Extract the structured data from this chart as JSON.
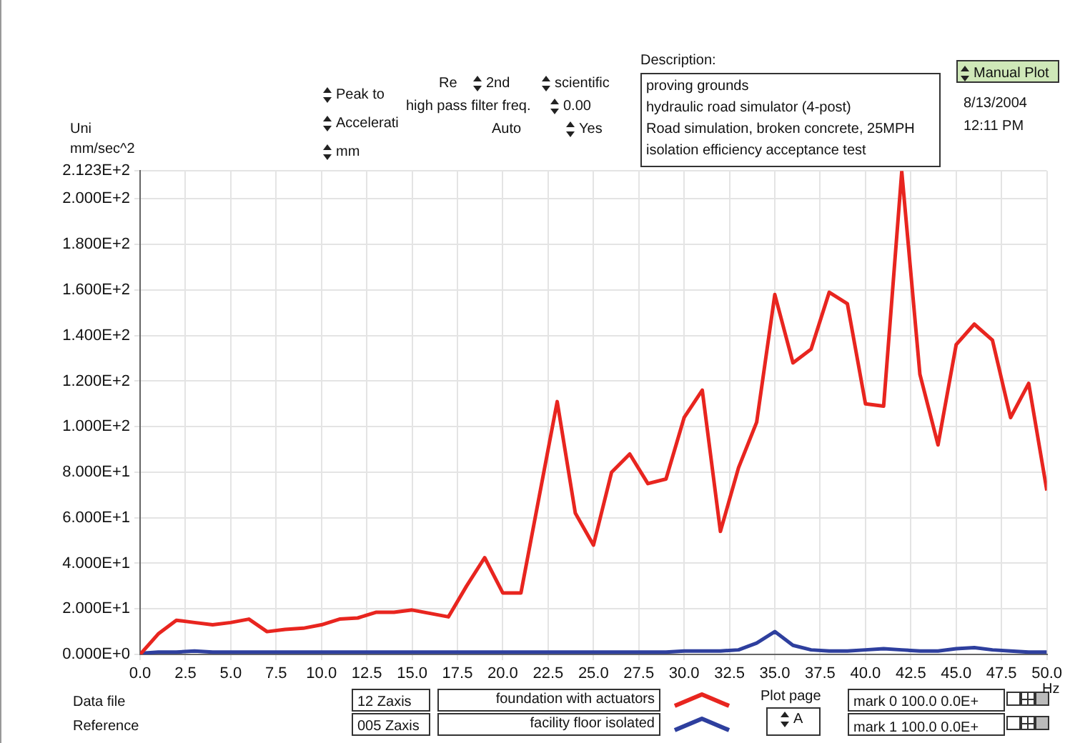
{
  "chart_data": {
    "type": "line",
    "xlabel": "Hz",
    "ylabel": "mm/sec^2",
    "x": [
      0,
      1,
      2,
      3,
      4,
      5,
      6,
      7,
      8,
      9,
      10,
      11,
      12,
      13,
      14,
      15,
      16,
      17,
      18,
      19,
      20,
      21,
      22,
      23,
      24,
      25,
      26,
      27,
      28,
      29,
      30,
      31,
      32,
      33,
      34,
      35,
      36,
      37,
      38,
      39,
      40,
      41,
      42,
      43,
      44,
      45,
      46,
      47,
      48,
      49,
      50
    ],
    "series": [
      {
        "name": "foundation with actuators",
        "color": "#e8251f",
        "values": [
          0,
          9,
          15,
          14,
          13,
          14,
          15.5,
          10,
          11,
          11.5,
          13,
          15.5,
          16,
          18.5,
          18.5,
          19.5,
          18,
          16.5,
          30,
          42.5,
          27,
          27,
          69,
          111,
          62,
          48,
          80,
          88,
          75,
          77,
          104,
          116,
          54,
          82,
          102,
          158,
          128,
          134,
          159,
          154,
          110,
          109,
          212,
          123,
          92,
          136,
          145,
          138,
          104,
          119,
          72
        ]
      },
      {
        "name": "facility floor isolated",
        "color": "#2e3f9e",
        "values": [
          0.5,
          1,
          1,
          1.5,
          1,
          1,
          1,
          1,
          1,
          1,
          1,
          1,
          1,
          1,
          1,
          1,
          1,
          1,
          1,
          1,
          1,
          1,
          1,
          1,
          1,
          1,
          1,
          1,
          1,
          1,
          1.5,
          1.5,
          1.5,
          2,
          5,
          10,
          4,
          2,
          1.5,
          1.5,
          2,
          2.5,
          2,
          1.5,
          1.5,
          2.5,
          3,
          2,
          1.5,
          1,
          1
        ]
      }
    ],
    "xlim": [
      0,
      50
    ],
    "xticks": [
      {
        "value": 0,
        "label": "0.0"
      },
      {
        "value": 2.5,
        "label": "2.5"
      },
      {
        "value": 5,
        "label": "5.0"
      },
      {
        "value": 7.5,
        "label": "7.5"
      },
      {
        "value": 10,
        "label": "10.0"
      },
      {
        "value": 12.5,
        "label": "12.5"
      },
      {
        "value": 15,
        "label": "15.0"
      },
      {
        "value": 17.5,
        "label": "17.5"
      },
      {
        "value": 20,
        "label": "20.0"
      },
      {
        "value": 22.5,
        "label": "22.5"
      },
      {
        "value": 25,
        "label": "25.0"
      },
      {
        "value": 27.5,
        "label": "27.5"
      },
      {
        "value": 30,
        "label": "30.0"
      },
      {
        "value": 32.5,
        "label": "32.5"
      },
      {
        "value": 35,
        "label": "35.0"
      },
      {
        "value": 37.5,
        "label": "37.5"
      },
      {
        "value": 40,
        "label": "40.0"
      },
      {
        "value": 42.5,
        "label": "42.5"
      },
      {
        "value": 45,
        "label": "45.0"
      },
      {
        "value": 47.5,
        "label": "47.5"
      },
      {
        "value": 50,
        "label": "50.0"
      }
    ],
    "ylim": [
      0,
      212.3
    ],
    "yticks": [
      {
        "value": 0,
        "label": "0.000E+0"
      },
      {
        "value": 20,
        "label": "2.000E+1"
      },
      {
        "value": 40,
        "label": "4.000E+1"
      },
      {
        "value": 60,
        "label": "6.000E+1"
      },
      {
        "value": 80,
        "label": "8.000E+1"
      },
      {
        "value": 100,
        "label": "1.000E+2"
      },
      {
        "value": 120,
        "label": "1.200E+2"
      },
      {
        "value": 140,
        "label": "1.400E+2"
      },
      {
        "value": 160,
        "label": "1.600E+2"
      },
      {
        "value": 180,
        "label": "1.800E+2"
      },
      {
        "value": 200,
        "label": "2.000E+2"
      },
      {
        "value": 212.3,
        "label": "2.123E+2"
      }
    ],
    "grid": true,
    "legend": "bottom",
    "marker": "none",
    "line_style": "solid",
    "annotations": [
      "Uni",
      "Peak to",
      "Accelerati",
      "mm",
      "Re",
      "2nd",
      "scientific",
      "high pass filter freq.",
      "0.00",
      "Auto",
      "Yes",
      "Description:",
      "proving grounds",
      "hydraulic road simulator (4-post)",
      "Road simulation, broken concrete, 25MPH",
      "isolation efficiency acceptance test",
      "Manual Plot",
      "8/13/2004",
      "12:11 PM",
      "Data file",
      "12 Zaxis",
      "Reference",
      "005 Zaxis",
      "Plot page",
      "A",
      "mark 0  100.0 0.0E+",
      "mark 1  100.0 0.0E+"
    ]
  }
}
